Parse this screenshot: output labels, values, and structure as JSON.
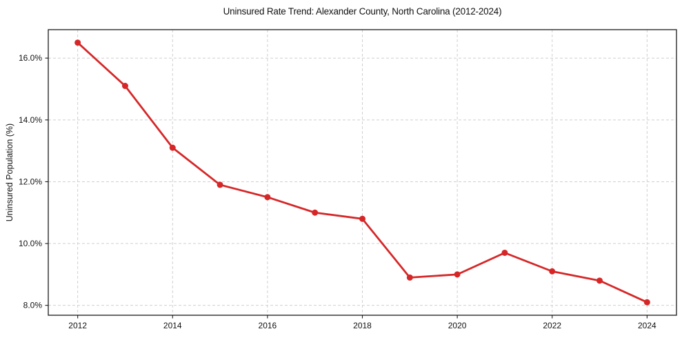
{
  "chart_data": {
    "type": "line",
    "title": "Uninsured Rate Trend: Alexander County, North Carolina (2012-2024)",
    "ylabel": "Uninsured Population (%)",
    "xlabel": "",
    "x": [
      2012,
      2013,
      2014,
      2015,
      2016,
      2017,
      2018,
      2019,
      2020,
      2021,
      2022,
      2023,
      2024
    ],
    "values": [
      16.5,
      15.1,
      13.1,
      11.9,
      11.5,
      11.0,
      10.8,
      8.9,
      9.0,
      9.7,
      9.1,
      8.8,
      8.1
    ],
    "xticks": [
      2012,
      2014,
      2016,
      2018,
      2020,
      2022,
      2024
    ],
    "yticks": [
      8.0,
      10.0,
      12.0,
      14.0,
      16.0
    ],
    "ytick_decimals": 1,
    "ytick_suffix": "%",
    "xlim": [
      2011.38,
      2024.62
    ],
    "ylim": [
      7.68,
      16.92
    ],
    "grid": true,
    "legend": false,
    "colors": {
      "line": "#d62728",
      "marker": "#d62728",
      "grid": "#cfcfcf",
      "spine": "#1a1a1a",
      "tick": "#1a1a1a",
      "background": "#ffffff"
    }
  }
}
